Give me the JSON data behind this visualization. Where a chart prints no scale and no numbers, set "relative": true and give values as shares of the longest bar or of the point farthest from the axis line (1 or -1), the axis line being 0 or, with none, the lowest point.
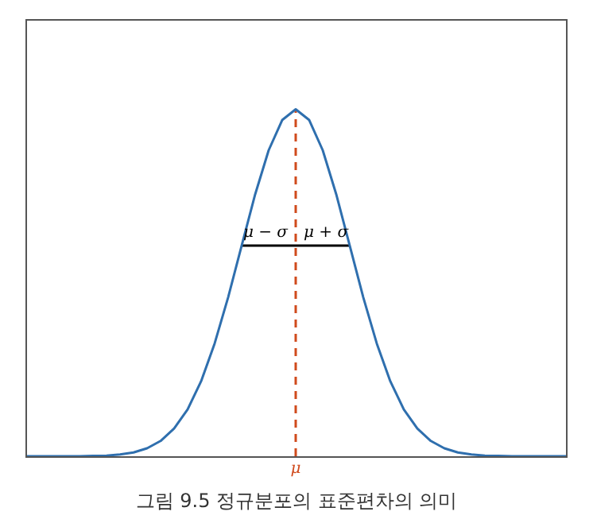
{
  "chart_data": {
    "type": "line",
    "title": "그림 9.5 정규분포의 표준편차의 의미",
    "relative": true,
    "legend": false,
    "marker": "none",
    "categories": [
      null,
      null,
      null,
      null,
      null,
      null,
      null,
      null,
      null,
      null,
      null,
      null,
      null,
      null,
      null,
      null,
      null,
      null,
      null,
      null,
      null,
      null,
      null,
      null,
      null,
      null,
      null,
      null,
      null,
      null,
      null,
      null,
      null,
      null,
      null,
      null,
      null,
      null,
      null,
      null,
      null
    ],
    "series": [
      {
        "color": "#2f6fae",
        "values": [
          0,
          0,
          0,
          0,
          0,
          0.001,
          0.002,
          0.005,
          0.011,
          0.023,
          0.044,
          0.08,
          0.135,
          0.216,
          0.325,
          0.458,
          0.607,
          0.755,
          0.882,
          0.969,
          1,
          0.969,
          0.882,
          0.755,
          0.607,
          0.458,
          0.325,
          0.216,
          0.135,
          0.08,
          0.044,
          0.023,
          0.011,
          0.005,
          0.002,
          0.001,
          0,
          0,
          0,
          0,
          0
        ]
      },
      {
        "color": "#000000",
        "values": [
          null,
          null,
          null,
          null,
          null,
          null,
          null,
          null,
          null,
          null,
          null,
          null,
          null,
          null,
          null,
          null,
          0.607,
          null,
          null,
          null,
          null,
          null,
          null,
          null,
          0.607,
          null,
          null,
          null,
          null,
          null,
          null,
          null,
          null,
          null,
          null,
          null,
          null,
          null,
          null,
          null,
          null
        ]
      }
    ],
    "ref_lines": [
      {
        "axis": "x",
        "label": "μ",
        "color": "#d04a1c",
        "line_style": "dashed"
      }
    ],
    "annotations": [
      "μ − σ",
      "μ + σ"
    ]
  }
}
